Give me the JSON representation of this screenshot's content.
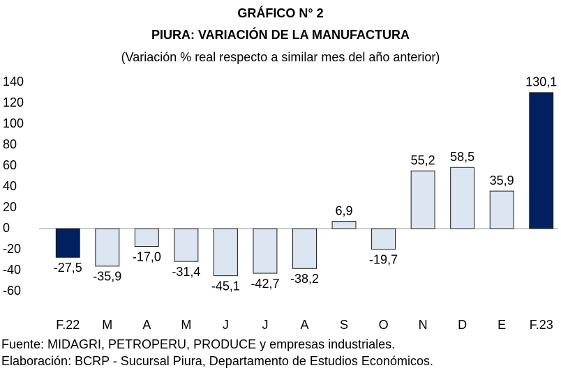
{
  "chart_data": {
    "type": "bar",
    "title": "GRÁFICO N° 2",
    "subtitle": "PIURA: VARIACIÓN DE LA MANUFACTURA",
    "note": "(Variación % real respecto a similar mes del año anterior)",
    "categories": [
      "F.22",
      "M",
      "A",
      "M",
      "J",
      "J",
      "A",
      "S",
      "O",
      "N",
      "D",
      "E",
      "F.23"
    ],
    "values": [
      -27.5,
      -35.9,
      -17.0,
      -31.4,
      -45.1,
      -42.7,
      -38.2,
      6.9,
      -19.7,
      55.2,
      58.5,
      35.9,
      130.1
    ],
    "value_labels": [
      "-27,5",
      "-35,9",
      "-17,0",
      "-31,4",
      "-45,1",
      "-42,7",
      "-38,2",
      "6,9",
      "-19,7",
      "55,2",
      "58,5",
      "35,9",
      "130,1"
    ],
    "colors": [
      "#002060",
      "#dce6f2",
      "#dce6f2",
      "#dce6f2",
      "#dce6f2",
      "#dce6f2",
      "#dce6f2",
      "#dce6f2",
      "#dce6f2",
      "#dce6f2",
      "#dce6f2",
      "#dce6f2",
      "#002060"
    ],
    "ylim": [
      -60,
      140
    ],
    "yticks": [
      -60,
      -40,
      -20,
      0,
      20,
      40,
      60,
      80,
      100,
      120,
      140
    ],
    "grid": false,
    "source": "Fuente: MIDAGRI, PETROPERU, PRODUCE y empresas industriales.",
    "elaboration": "Elaboración: BCRP - Sucursal Piura, Departamento de Estudios Económicos."
  }
}
